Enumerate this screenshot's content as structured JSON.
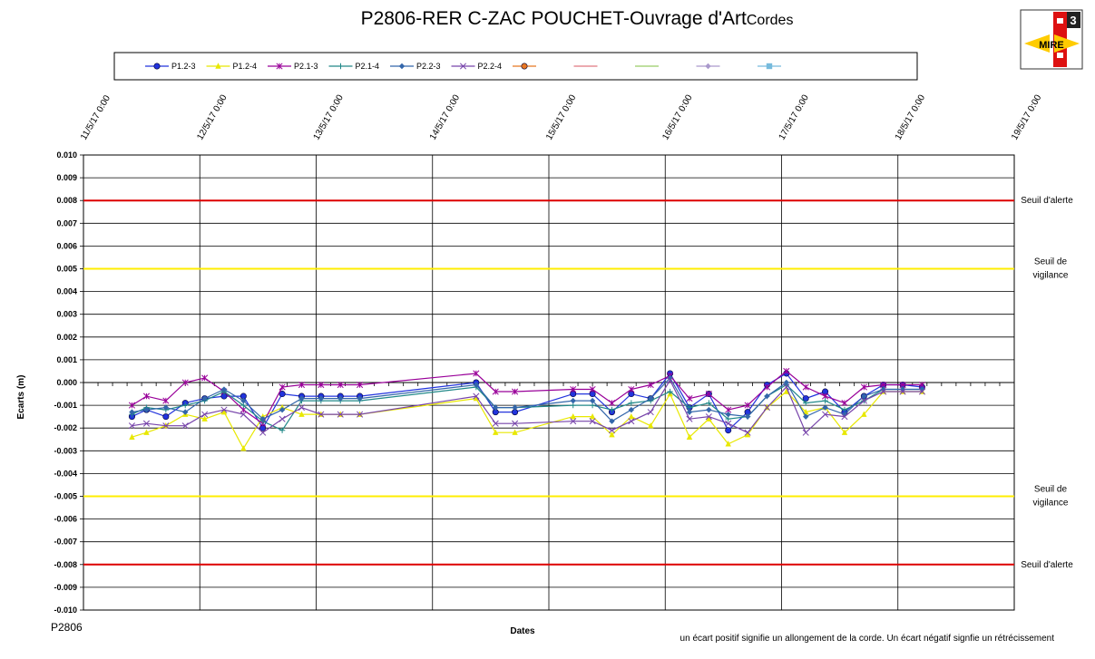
{
  "chart_data": {
    "type": "line",
    "title": "P2806-RER C-ZAC POUCHET-Ouvrage d'Art",
    "title_suffix": "Cordes",
    "xlabel": "Dates",
    "ylabel": "Ecarts (m)",
    "ylim": [
      -0.01,
      0.01
    ],
    "y_ticks": [
      "0.010",
      "0.009",
      "0.008",
      "0.007",
      "0.006",
      "0.005",
      "0.004",
      "0.003",
      "0.002",
      "0.001",
      "0.000",
      "-0.001",
      "-0.002",
      "-0.003",
      "-0.004",
      "-0.005",
      "-0.006",
      "-0.007",
      "-0.008",
      "-0.009",
      "-0.010"
    ],
    "xlim": [
      "2017-05-11T00:00",
      "2017-05-19T00:00"
    ],
    "x_ticks": [
      "11/5/17 0:00",
      "12/5/17 0:00",
      "13/5/17 0:00",
      "14/5/17 0:00",
      "15/5/17 0:00",
      "16/5/17 0:00",
      "17/5/17 0:00",
      "18/5/17 0:00",
      "19/5/17 0:00"
    ],
    "grid": true,
    "legend_position": "top",
    "x": [
      "2017-05-11T10:00",
      "2017-05-11T13:00",
      "2017-05-11T17:00",
      "2017-05-11T21:00",
      "2017-05-12T01:00",
      "2017-05-12T05:00",
      "2017-05-12T09:00",
      "2017-05-12T13:00",
      "2017-05-12T17:00",
      "2017-05-12T21:00",
      "2017-05-13T01:00",
      "2017-05-13T05:00",
      "2017-05-13T09:00",
      "2017-05-14T09:00",
      "2017-05-14T13:00",
      "2017-05-14T17:00",
      "2017-05-15T05:00",
      "2017-05-15T09:00",
      "2017-05-15T13:00",
      "2017-05-15T17:00",
      "2017-05-15T21:00",
      "2017-05-16T01:00",
      "2017-05-16T05:00",
      "2017-05-16T09:00",
      "2017-05-16T13:00",
      "2017-05-16T17:00",
      "2017-05-16T21:00",
      "2017-05-17T01:00",
      "2017-05-17T05:00",
      "2017-05-17T09:00",
      "2017-05-17T13:00",
      "2017-05-17T17:00",
      "2017-05-17T21:00",
      "2017-05-18T01:00",
      "2017-05-18T05:00"
    ],
    "series": [
      {
        "name": "P1.2-3",
        "color": "#2233dd",
        "marker": "circle",
        "values": [
          -0.0015,
          -0.0012,
          -0.0015,
          -0.0009,
          -0.0007,
          -0.0006,
          -0.0006,
          -0.002,
          -0.0005,
          -0.0006,
          -0.0006,
          -0.0006,
          -0.0006,
          0.0,
          -0.0013,
          -0.0013,
          -0.0005,
          -0.0005,
          -0.0013,
          -0.0005,
          -0.0007,
          0.0004,
          -0.0011,
          -0.0005,
          -0.0021,
          -0.0013,
          -0.0001,
          0.0004,
          -0.0007,
          -0.0004,
          -0.0013,
          -0.0006,
          -0.0001,
          -0.0001,
          -0.0002
        ]
      },
      {
        "name": "P1.2-4",
        "color": "#e8e800",
        "marker": "triangle",
        "values": [
          -0.0024,
          -0.0022,
          -0.0019,
          -0.0014,
          -0.0016,
          -0.0013,
          -0.0029,
          -0.0015,
          -0.0011,
          -0.0014,
          -0.0014,
          -0.0014,
          -0.0014,
          -0.0007,
          -0.0022,
          -0.0022,
          -0.0015,
          -0.0015,
          -0.0023,
          -0.0015,
          -0.0019,
          -0.0005,
          -0.0024,
          -0.0016,
          -0.0027,
          -0.0023,
          -0.0011,
          -0.0004,
          -0.0013,
          -0.0011,
          -0.0022,
          -0.0014,
          -0.0004,
          -0.0004,
          -0.0004
        ]
      },
      {
        "name": "P2.1-3",
        "color": "#990099",
        "marker": "star",
        "values": [
          -0.001,
          -0.0006,
          -0.0008,
          0.0,
          0.0002,
          -0.0004,
          -0.0012,
          -0.0018,
          -0.0002,
          -0.0001,
          -0.0001,
          -0.0001,
          -0.0001,
          0.0004,
          -0.0004,
          -0.0004,
          -0.0003,
          -0.0003,
          -0.0009,
          -0.0003,
          -0.0001,
          0.0003,
          -0.0007,
          -0.0005,
          -0.0012,
          -0.001,
          -0.0002,
          0.0005,
          -0.0002,
          -0.0006,
          -0.0009,
          -0.0002,
          -0.0001,
          -0.0001,
          -0.0001
        ]
      },
      {
        "name": "P2.1-4",
        "color": "#208888",
        "marker": "plus",
        "values": [
          -0.0014,
          -0.0011,
          -0.0012,
          -0.001,
          -0.0008,
          -0.0004,
          -0.001,
          -0.0017,
          -0.0021,
          -0.0008,
          -0.0008,
          -0.0008,
          -0.0008,
          -0.0002,
          -0.0011,
          -0.0011,
          -0.001,
          -0.001,
          -0.0012,
          -0.0009,
          -0.0008,
          -0.0004,
          -0.0011,
          -0.0009,
          -0.0016,
          -0.0015,
          -0.0006,
          -0.0001,
          -0.0009,
          -0.0008,
          -0.0012,
          -0.0008,
          -0.0003,
          -0.0003,
          -0.0003
        ]
      },
      {
        "name": "P2.2-3",
        "color": "#3366aa",
        "marker": "diamond",
        "values": [
          -0.0013,
          -0.0012,
          -0.0011,
          -0.0013,
          -0.0007,
          -0.0003,
          -0.0008,
          -0.0016,
          -0.0012,
          -0.0007,
          -0.0007,
          -0.0007,
          -0.0007,
          -0.0001,
          -0.0011,
          -0.0011,
          -0.0008,
          -0.0008,
          -0.0017,
          -0.0012,
          -0.0007,
          0.0002,
          -0.0013,
          -0.0012,
          -0.0014,
          -0.0015,
          -0.0006,
          0.0,
          -0.0015,
          -0.0011,
          -0.0014,
          -0.0006,
          -0.0003,
          -0.0003,
          -0.0003
        ]
      },
      {
        "name": "P2.2-4",
        "color": "#7744aa",
        "marker": "x",
        "values": [
          -0.0019,
          -0.0018,
          -0.0019,
          -0.0019,
          -0.0014,
          -0.0012,
          -0.0014,
          -0.0022,
          -0.0016,
          -0.0011,
          -0.0014,
          -0.0014,
          -0.0014,
          -0.0006,
          -0.0018,
          -0.0018,
          -0.0017,
          -0.0017,
          -0.0021,
          -0.0017,
          -0.0013,
          0.0001,
          -0.0016,
          -0.0015,
          -0.0018,
          -0.0022,
          -0.0011,
          -0.0002,
          -0.0022,
          -0.0014,
          -0.0015,
          -0.0008,
          -0.0004,
          -0.0004,
          -0.0004
        ]
      }
    ],
    "empty_legend_entries": [
      {
        "color": "#e87722",
        "marker": "circle"
      },
      {
        "color": "#e07880",
        "marker": "none"
      },
      {
        "color": "#99cc66",
        "marker": "none"
      },
      {
        "color": "#aa99cc",
        "marker": "diamond"
      },
      {
        "color": "#77bbdd",
        "marker": "square"
      }
    ],
    "thresholds": [
      {
        "value": 0.008,
        "label": "Seuil d'alerte",
        "color": "#dd0000"
      },
      {
        "value": 0.005,
        "label": "Seuil de vigilance",
        "color": "#ffee00"
      },
      {
        "value": -0.005,
        "label": "Seuil de vigilance",
        "color": "#ffee00"
      },
      {
        "value": -0.008,
        "label": "Seuil d'alerte",
        "color": "#dd0000"
      }
    ],
    "project_code": "P2806",
    "footnote": "un écart positif signifie un allongement de la corde. Un écart négatif signfie un rétrécissement"
  },
  "logo": {
    "text": "MIRE",
    "badge": "3"
  }
}
